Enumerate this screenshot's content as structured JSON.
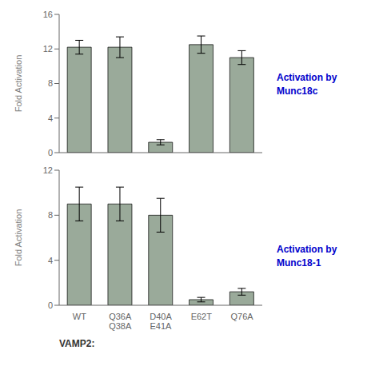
{
  "chart_data": [
    {
      "type": "bar",
      "title": "Activation by\nMunc18c",
      "ylabel": "Fold Activation",
      "categories": [
        "WT",
        "Q36A\nQ38A",
        "D40A\nE41A",
        "E62T",
        "Q76A"
      ],
      "values": [
        12.2,
        12.2,
        1.2,
        12.5,
        11.0
      ],
      "errors": [
        0.8,
        1.2,
        0.3,
        1.0,
        0.8
      ],
      "color": "#9aaa9a",
      "ylim": [
        0,
        16
      ],
      "yticks": [
        0,
        4,
        8,
        12,
        16
      ],
      "tick_labels": "y",
      "grid": false
    },
    {
      "type": "bar",
      "title": "Activation by\nMunc18-1",
      "ylabel": "Fold Activation",
      "xlabel": "VAMP2:",
      "categories": [
        "WT",
        "Q36A\nQ38A",
        "D40A\nE41A",
        "E62T",
        "Q76A"
      ],
      "values": [
        9.0,
        9.0,
        8.0,
        0.5,
        1.2
      ],
      "errors": [
        1.5,
        1.5,
        1.5,
        0.2,
        0.3
      ],
      "color": "#9aaa9a",
      "ylim": [
        0,
        12
      ],
      "yticks": [
        0,
        4,
        8,
        12
      ],
      "grid": false
    }
  ]
}
